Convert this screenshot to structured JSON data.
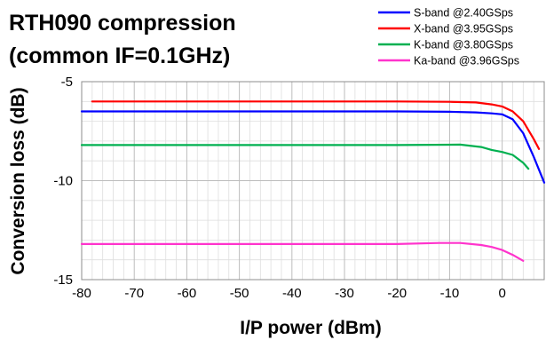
{
  "chart_data": {
    "type": "line",
    "title_lines": [
      "RTH090 compression",
      "(common IF=0.1GHz)"
    ],
    "xlabel": "I/P power (dBm)",
    "ylabel": "Conversion loss (dB)",
    "xlim": [
      -80,
      8
    ],
    "ylim": [
      -15,
      -5
    ],
    "xticks": [
      -80,
      -70,
      -60,
      -50,
      -40,
      -30,
      -20,
      -10,
      0
    ],
    "yticks": [
      -5,
      -10,
      -15
    ],
    "x_minor_step": 2,
    "y_minor_step": 1,
    "grid": true,
    "legend_position": "top-right",
    "series": [
      {
        "name": "S-band @2.40GSps",
        "color": "#0000ff",
        "x": [
          -80,
          -60,
          -40,
          -20,
          -10,
          -5,
          -2,
          0,
          2,
          4,
          6,
          8
        ],
        "y": [
          -6.5,
          -6.5,
          -6.5,
          -6.5,
          -6.52,
          -6.55,
          -6.6,
          -6.65,
          -6.9,
          -7.6,
          -8.8,
          -10.1
        ]
      },
      {
        "name": "X-band @3.95GSps",
        "color": "#ff0000",
        "x": [
          -78,
          -60,
          -40,
          -20,
          -10,
          -5,
          -2,
          0,
          2,
          4,
          6,
          7
        ],
        "y": [
          -6.0,
          -6.0,
          -6.0,
          -6.0,
          -6.02,
          -6.05,
          -6.15,
          -6.25,
          -6.5,
          -7.0,
          -7.9,
          -8.4
        ]
      },
      {
        "name": "K-band @3.80GSps",
        "color": "#00b050",
        "x": [
          -80,
          -60,
          -40,
          -20,
          -8,
          -4,
          -2,
          0,
          2,
          4,
          5
        ],
        "y": [
          -8.2,
          -8.2,
          -8.2,
          -8.2,
          -8.18,
          -8.3,
          -8.45,
          -8.55,
          -8.7,
          -9.1,
          -9.4
        ]
      },
      {
        "name": "Ka-band @3.96GSps",
        "color": "#ff33cc",
        "x": [
          -80,
          -60,
          -40,
          -20,
          -12,
          -8,
          -4,
          -2,
          0,
          2,
          4
        ],
        "y": [
          -13.2,
          -13.2,
          -13.2,
          -13.2,
          -13.15,
          -13.15,
          -13.25,
          -13.35,
          -13.5,
          -13.75,
          -14.05
        ]
      }
    ]
  }
}
